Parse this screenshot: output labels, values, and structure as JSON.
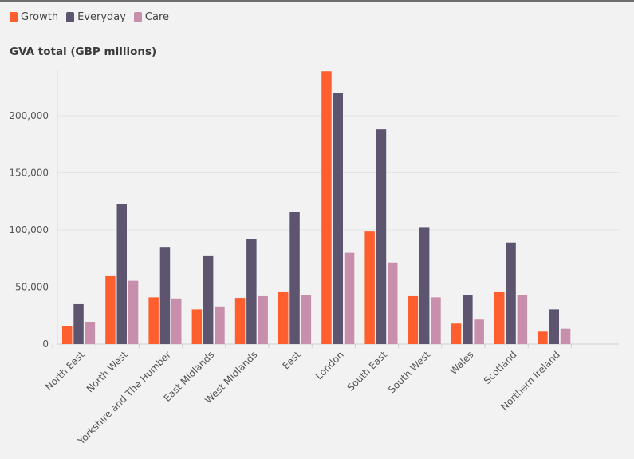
{
  "chart_data": {
    "type": "bar",
    "title": "GVA total (GBP millions)",
    "categories": [
      "North East",
      "North West",
      "Yorkshire and The Humber",
      "East Midlands",
      "West Midlands",
      "East",
      "London",
      "South East",
      "South West",
      "Wales",
      "Scotland",
      "Northern Ireland"
    ],
    "series": [
      {
        "name": "Growth",
        "color": "#ff5f2e",
        "values": [
          15500,
          59500,
          41000,
          30500,
          40500,
          45500,
          239000,
          98500,
          42000,
          18000,
          45500,
          11000
        ]
      },
      {
        "name": "Everyday",
        "color": "#5d5470",
        "values": [
          35000,
          122500,
          84500,
          77000,
          92000,
          115500,
          220000,
          188000,
          102500,
          43000,
          89000,
          30500
        ]
      },
      {
        "name": "Care",
        "color": "#c78fab",
        "values": [
          19000,
          55500,
          40000,
          33000,
          42000,
          43000,
          80000,
          71500,
          41000,
          21500,
          43000,
          13500
        ]
      }
    ],
    "yticks": [
      0,
      50000,
      100000,
      150000,
      200000
    ],
    "ytick_labels": [
      "0",
      "50,000",
      "100,000",
      "150,000",
      "200,000"
    ],
    "ylim": [
      0,
      240000
    ],
    "grid": true,
    "legend_position": "top-left"
  }
}
